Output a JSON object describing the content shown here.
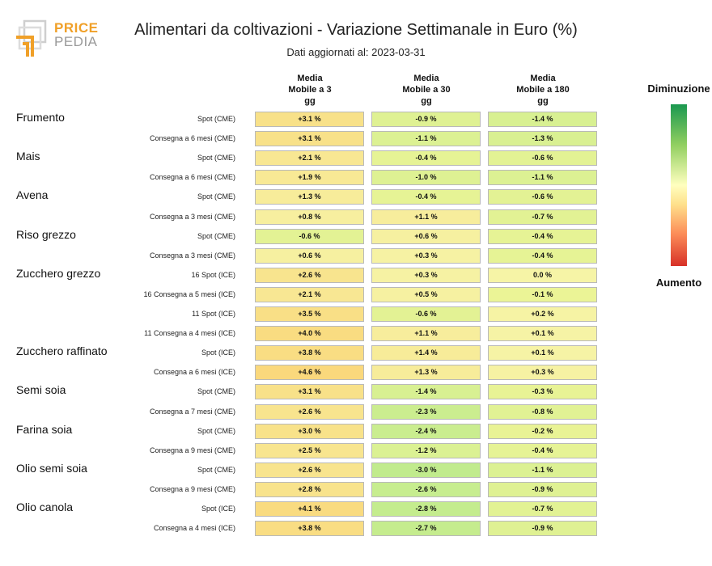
{
  "logo": {
    "line1": "PRICE",
    "line2": "PEDIA",
    "accent": "#f0a028",
    "gray": "#9a9a9a"
  },
  "chart_data": {
    "type": "table",
    "title": "Alimentari da coltivazioni - Variazione Settimanale in Euro (%)",
    "subtitle": "Dati aggiornati al: 2023-03-31",
    "columns": [
      "Media Mobile a 3 gg",
      "Media Mobile a 30 gg",
      "Media Mobile a 180 gg"
    ],
    "column_lines": [
      [
        "Media",
        "Mobile a 3",
        "gg"
      ],
      [
        "Media",
        "Mobile a 30",
        "gg"
      ],
      [
        "Media",
        "Mobile a 180",
        "gg"
      ]
    ],
    "legend": {
      "top": "Diminuzione",
      "bottom": "Aumento"
    },
    "rows": [
      {
        "group": "Frumento",
        "label": "Spot (CME)",
        "values": [
          3.1,
          -0.9,
          -1.4
        ],
        "text": [
          "+3.1 %",
          "-0.9 %",
          "-1.4 %"
        ]
      },
      {
        "group": "",
        "label": "Consegna a 6 mesi (CME)",
        "values": [
          3.1,
          -1.1,
          -1.3
        ],
        "text": [
          "+3.1 %",
          "-1.1 %",
          "-1.3 %"
        ]
      },
      {
        "group": "Mais",
        "label": "Spot (CME)",
        "values": [
          2.1,
          -0.4,
          -0.6
        ],
        "text": [
          "+2.1 %",
          "-0.4 %",
          "-0.6 %"
        ]
      },
      {
        "group": "",
        "label": "Consegna a 6 mesi (CME)",
        "values": [
          1.9,
          -1.0,
          -1.1
        ],
        "text": [
          "+1.9 %",
          "-1.0 %",
          "-1.1 %"
        ]
      },
      {
        "group": "Avena",
        "label": "Spot (CME)",
        "values": [
          1.3,
          -0.4,
          -0.6
        ],
        "text": [
          "+1.3 %",
          "-0.4 %",
          "-0.6 %"
        ]
      },
      {
        "group": "",
        "label": "Consegna a 3 mesi (CME)",
        "values": [
          0.8,
          1.1,
          -0.7
        ],
        "text": [
          "+0.8 %",
          "+1.1 %",
          "-0.7 %"
        ]
      },
      {
        "group": "Riso grezzo",
        "label": "Spot (CME)",
        "values": [
          -0.6,
          0.6,
          -0.4
        ],
        "text": [
          "-0.6 %",
          "+0.6 %",
          "-0.4 %"
        ]
      },
      {
        "group": "",
        "label": "Consegna a 3 mesi (CME)",
        "values": [
          0.6,
          0.3,
          -0.4
        ],
        "text": [
          "+0.6 %",
          "+0.3 %",
          "-0.4 %"
        ]
      },
      {
        "group": "Zucchero grezzo",
        "label": "16 Spot (ICE)",
        "values": [
          2.6,
          0.3,
          0.0
        ],
        "text": [
          "+2.6 %",
          "+0.3 %",
          "0.0 %"
        ]
      },
      {
        "group": "",
        "label": "16 Consegna a 5 mesi (ICE)",
        "values": [
          2.1,
          0.5,
          -0.1
        ],
        "text": [
          "+2.1 %",
          "+0.5 %",
          "-0.1 %"
        ]
      },
      {
        "group": "",
        "label": "11 Spot (ICE)",
        "values": [
          3.5,
          -0.6,
          0.2
        ],
        "text": [
          "+3.5 %",
          "-0.6 %",
          "+0.2 %"
        ]
      },
      {
        "group": "",
        "label": "11 Consegna a 4 mesi (ICE)",
        "values": [
          4.0,
          1.1,
          0.1
        ],
        "text": [
          "+4.0 %",
          "+1.1 %",
          "+0.1 %"
        ]
      },
      {
        "group": "Zucchero raffinato",
        "label": "Spot (ICE)",
        "values": [
          3.8,
          1.4,
          0.1
        ],
        "text": [
          "+3.8 %",
          "+1.4 %",
          "+0.1 %"
        ]
      },
      {
        "group": "",
        "label": "Consegna a 6 mesi (ICE)",
        "values": [
          4.6,
          1.3,
          0.3
        ],
        "text": [
          "+4.6 %",
          "+1.3 %",
          "+0.3 %"
        ]
      },
      {
        "group": "Semi soia",
        "label": "Spot (CME)",
        "values": [
          3.1,
          -1.4,
          -0.3
        ],
        "text": [
          "+3.1 %",
          "-1.4 %",
          "-0.3 %"
        ]
      },
      {
        "group": "",
        "label": "Consegna a 7 mesi (CME)",
        "values": [
          2.6,
          -2.3,
          -0.8
        ],
        "text": [
          "+2.6 %",
          "-2.3 %",
          "-0.8 %"
        ]
      },
      {
        "group": "Farina soia",
        "label": "Spot (CME)",
        "values": [
          3.0,
          -2.4,
          -0.2
        ],
        "text": [
          "+3.0 %",
          "-2.4 %",
          "-0.2 %"
        ]
      },
      {
        "group": "",
        "label": "Consegna a 9 mesi (CME)",
        "values": [
          2.5,
          -1.2,
          -0.4
        ],
        "text": [
          "+2.5 %",
          "-1.2 %",
          "-0.4 %"
        ]
      },
      {
        "group": "Olio semi soia",
        "label": "Spot (CME)",
        "values": [
          2.6,
          -3.0,
          -1.1
        ],
        "text": [
          "+2.6 %",
          "-3.0 %",
          "-1.1 %"
        ]
      },
      {
        "group": "",
        "label": "Consegna a 9 mesi (CME)",
        "values": [
          2.8,
          -2.6,
          -0.9
        ],
        "text": [
          "+2.8 %",
          "-2.6 %",
          "-0.9 %"
        ]
      },
      {
        "group": "Olio canola",
        "label": "Spot (ICE)",
        "values": [
          4.1,
          -2.8,
          -0.7
        ],
        "text": [
          "+4.1 %",
          "-2.8 %",
          "-0.7 %"
        ]
      },
      {
        "group": "",
        "label": "Consegna a 4 mesi (ICE)",
        "values": [
          3.8,
          -2.7,
          -0.9
        ],
        "text": [
          "+3.8 %",
          "-2.7 %",
          "-0.9 %"
        ]
      }
    ]
  }
}
